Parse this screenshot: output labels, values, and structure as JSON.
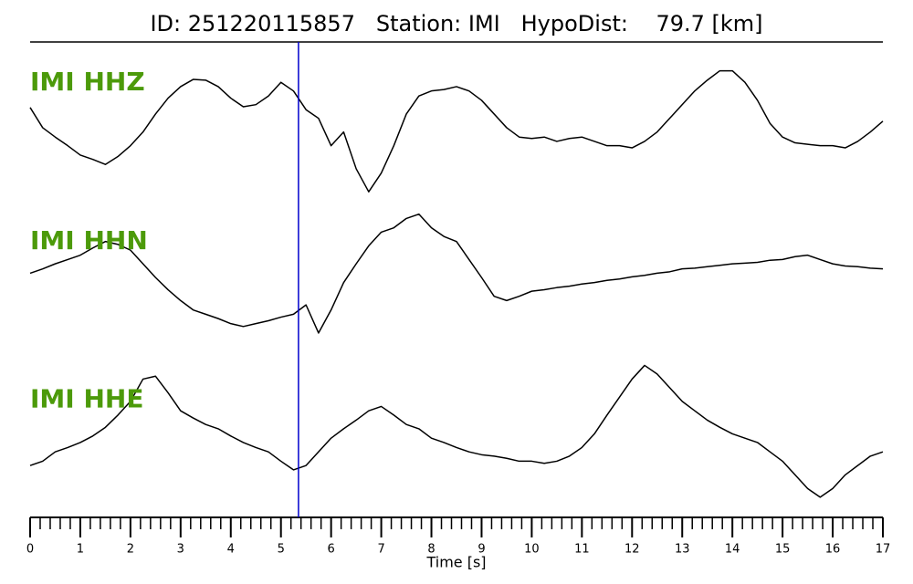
{
  "chart_data": {
    "type": "line",
    "title": "ID: 251220115857   Station: IMI   HypoDist:    79.7 [km]",
    "xlabel": "Time [s]",
    "x": [
      0,
      0.25,
      0.5,
      0.75,
      1,
      1.25,
      1.5,
      1.75,
      2,
      2.25,
      2.5,
      2.75,
      3,
      3.25,
      3.5,
      3.75,
      4,
      4.25,
      4.5,
      4.75,
      5,
      5.25,
      5.5,
      5.75,
      6,
      6.25,
      6.5,
      6.75,
      7,
      7.25,
      7.5,
      7.75,
      8,
      8.25,
      8.5,
      8.75,
      9,
      9.25,
      9.5,
      9.75,
      10,
      10.25,
      10.5,
      10.75,
      11,
      11.25,
      11.5,
      11.75,
      12,
      12.25,
      12.5,
      12.75,
      13,
      13.25,
      13.5,
      13.75,
      14,
      14.25,
      14.5,
      14.75,
      15,
      15.25,
      15.5,
      15.75,
      16,
      16.25,
      16.5,
      16.75,
      17
    ],
    "series": [
      {
        "name": "IMI HHZ",
        "color": "#000000",
        "label_color": "#4c9a0a",
        "values": [
          0.19,
          -0.09,
          -0.22,
          -0.34,
          -0.47,
          -0.53,
          -0.6,
          -0.49,
          -0.34,
          -0.15,
          0.1,
          0.32,
          0.48,
          0.58,
          0.57,
          0.48,
          0.32,
          0.2,
          0.23,
          0.35,
          0.54,
          0.42,
          0.16,
          0.04,
          -0.34,
          -0.15,
          -0.66,
          -0.98,
          -0.72,
          -0.34,
          0.1,
          0.35,
          0.42,
          0.44,
          0.48,
          0.42,
          0.29,
          0.1,
          -0.09,
          -0.22,
          -0.24,
          -0.22,
          -0.28,
          -0.24,
          -0.22,
          -0.28,
          -0.34,
          -0.34,
          -0.37,
          -0.28,
          -0.15,
          0.04,
          0.23,
          0.42,
          0.57,
          0.7,
          0.7,
          0.54,
          0.29,
          -0.03,
          -0.22,
          -0.3,
          -0.32,
          -0.34,
          -0.34,
          -0.37,
          -0.28,
          -0.15,
          0
        ]
      },
      {
        "name": "IMI HHN",
        "color": "#000000",
        "label_color": "#4c9a0a",
        "values": [
          0.09,
          0.15,
          0.22,
          0.28,
          0.34,
          0.44,
          0.53,
          0.49,
          0.41,
          0.22,
          0.03,
          -0.14,
          -0.29,
          -0.42,
          -0.48,
          -0.54,
          -0.61,
          -0.65,
          -0.61,
          -0.57,
          -0.52,
          -0.48,
          -0.35,
          -0.74,
          -0.42,
          -0.04,
          0.22,
          0.47,
          0.66,
          0.72,
          0.85,
          0.91,
          0.72,
          0.6,
          0.53,
          0.28,
          0.03,
          -0.23,
          -0.29,
          -0.23,
          -0.16,
          -0.14,
          -0.11,
          -0.09,
          -0.06,
          -0.04,
          -0.01,
          0.01,
          0.04,
          0.06,
          0.09,
          0.11,
          0.15,
          0.16,
          0.18,
          0.2,
          0.22,
          0.23,
          0.24,
          0.27,
          0.28,
          0.32,
          0.34,
          0.28,
          0.22,
          0.19,
          0.18,
          0.16,
          0.15
        ]
      },
      {
        "name": "IMI HHE",
        "color": "#000000",
        "label_color": "#4c9a0a",
        "values": [
          -0.38,
          -0.32,
          -0.19,
          -0.13,
          -0.06,
          0.03,
          0.15,
          0.32,
          0.51,
          0.82,
          0.86,
          0.63,
          0.38,
          0.28,
          0.19,
          0.13,
          0.03,
          -0.06,
          -0.13,
          -0.19,
          -0.32,
          -0.44,
          -0.38,
          -0.19,
          0,
          0.13,
          0.25,
          0.38,
          0.44,
          0.32,
          0.19,
          0.13,
          0,
          -0.06,
          -0.13,
          -0.19,
          -0.23,
          -0.25,
          -0.28,
          -0.32,
          -0.32,
          -0.35,
          -0.32,
          -0.25,
          -0.13,
          0.06,
          0.32,
          0.57,
          0.82,
          1.01,
          0.89,
          0.7,
          0.51,
          0.38,
          0.25,
          0.15,
          0.06,
          0,
          -0.06,
          -0.19,
          -0.32,
          -0.51,
          -0.7,
          -0.82,
          -0.7,
          -0.51,
          -0.38,
          -0.25,
          -0.19
        ]
      }
    ],
    "ylim": [
      -1.1,
      1.1
    ],
    "xlim": [
      0,
      17
    ],
    "xticks": [
      0,
      1,
      2,
      3,
      4,
      5,
      6,
      7,
      8,
      9,
      10,
      11,
      12,
      13,
      14,
      15,
      16,
      17
    ],
    "xminorticks": [
      0.2,
      0.4,
      0.6,
      0.8,
      1.2,
      1.4,
      1.6,
      1.8,
      2.2,
      2.4,
      2.6,
      2.8,
      3.2,
      3.4,
      3.6,
      3.8,
      4.2,
      4.4,
      4.6,
      4.8,
      5.2,
      5.4,
      5.6,
      5.8,
      6.2,
      6.4,
      6.6,
      6.8,
      7.2,
      7.4,
      7.6,
      7.8,
      8.2,
      8.4,
      8.6,
      8.8,
      9.2,
      9.4,
      9.6,
      9.8,
      10.2,
      10.4,
      10.6,
      10.8,
      11.2,
      11.4,
      11.6,
      11.8,
      12.2,
      12.4,
      12.6,
      12.8,
      13.2,
      13.4,
      13.6,
      13.8,
      14.2,
      14.4,
      14.6,
      14.8,
      15.2,
      15.4,
      15.6,
      15.8,
      16.2,
      16.4,
      16.6,
      16.8
    ],
    "pick_time": 5.35,
    "pick_color": "#0000cc"
  }
}
